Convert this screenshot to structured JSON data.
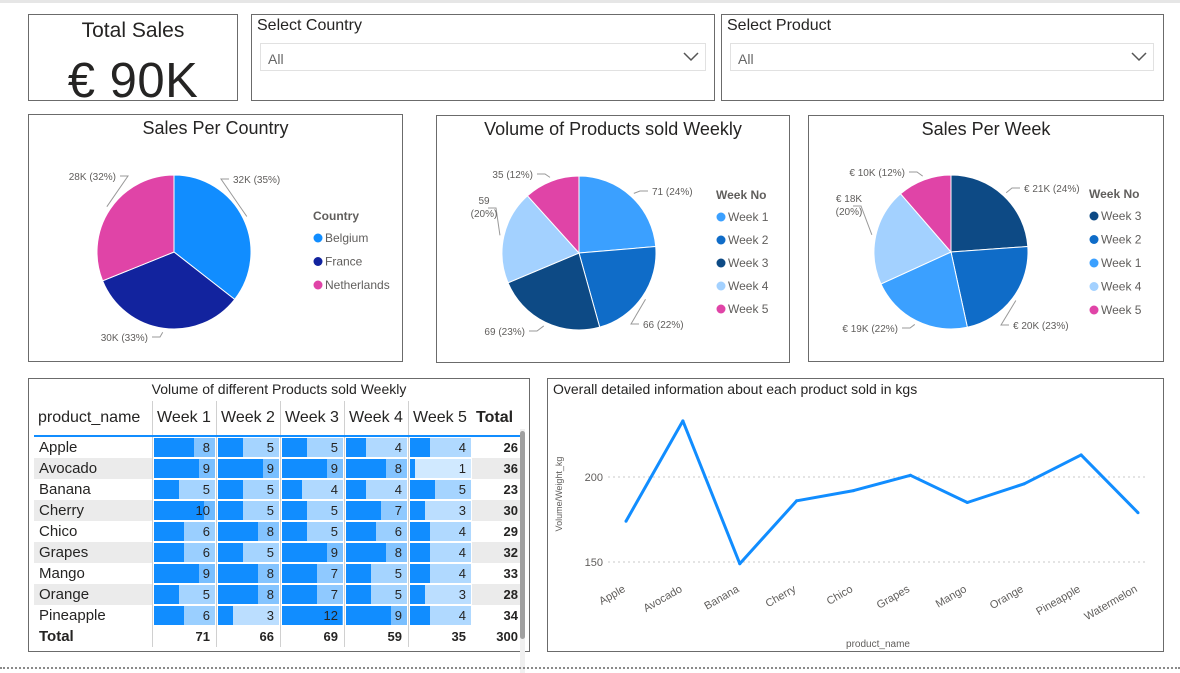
{
  "kpi": {
    "title": "Total Sales",
    "value": "€ 90K"
  },
  "country_slicer": {
    "title": "Select Country",
    "value": "All",
    "icon": "chevron-down-icon"
  },
  "product_slicer": {
    "title": "Select Product",
    "value": "All",
    "icon": "chevron-down-icon"
  },
  "colors": {
    "belgium": "#118dff",
    "france": "#12239e",
    "netherlands": "#e044a7",
    "week1": "#3ba0ff",
    "week2": "#0f6cc8",
    "week3": "#0d4a85",
    "week4": "#a3d1ff",
    "week5": "#e044a7",
    "line": "#118dff"
  },
  "chart_data": [
    {
      "type": "pie",
      "title": "Sales Per Country",
      "legend_title": "Country",
      "slices": [
        {
          "name": "Belgium",
          "value": 32,
          "label": "32K (35%)"
        },
        {
          "name": "France",
          "value": 30,
          "label": "30K (33%)"
        },
        {
          "name": "Netherlands",
          "value": 28,
          "label": "28K (32%)"
        }
      ]
    },
    {
      "type": "pie",
      "title": "Volume of Products sold Weekly",
      "legend_title": "Week No",
      "legend": [
        "Week 1",
        "Week 2",
        "Week 3",
        "Week 4",
        "Week 5"
      ],
      "slices": [
        {
          "name": "Week 1",
          "value": 71,
          "label": "71 (24%)"
        },
        {
          "name": "Week 2",
          "value": 66,
          "label": "66 (22%)"
        },
        {
          "name": "Week 3",
          "value": 69,
          "label": "69 (23%)"
        },
        {
          "name": "Week 4",
          "value": 59,
          "label_line1": "59",
          "label_line2": "(20%)"
        },
        {
          "name": "Week 5",
          "value": 35,
          "label": "35 (12%)"
        }
      ]
    },
    {
      "type": "pie",
      "title": "Sales Per Week",
      "legend_title": "Week No",
      "legend": [
        "Week 3",
        "Week 2",
        "Week 1",
        "Week 4",
        "Week 5"
      ],
      "slices": [
        {
          "name": "Week 3",
          "value": 21,
          "label": "€ 21K (24%)"
        },
        {
          "name": "Week 2",
          "value": 20,
          "label": "€ 20K (23%)"
        },
        {
          "name": "Week 1",
          "value": 19,
          "label": "€ 19K (22%)"
        },
        {
          "name": "Week 4",
          "value": 18,
          "label_line1": "€ 18K",
          "label_line2": "(20%)"
        },
        {
          "name": "Week 5",
          "value": 10,
          "label": "€ 10K (12%)"
        }
      ]
    },
    {
      "type": "table",
      "title": "Volume of different Products sold Weekly",
      "columns": [
        "product_name",
        "Week 1",
        "Week 2",
        "Week 3",
        "Week 4",
        "Week 5",
        "Total"
      ],
      "rows": [
        {
          "name": "Apple",
          "values": [
            8,
            5,
            5,
            4,
            4
          ],
          "total": 26
        },
        {
          "name": "Avocado",
          "values": [
            9,
            9,
            9,
            8,
            1
          ],
          "total": 36
        },
        {
          "name": "Banana",
          "values": [
            5,
            5,
            4,
            4,
            5
          ],
          "total": 23
        },
        {
          "name": "Cherry",
          "values": [
            10,
            5,
            5,
            7,
            3
          ],
          "total": 30
        },
        {
          "name": "Chico",
          "values": [
            6,
            8,
            5,
            6,
            4
          ],
          "total": 29
        },
        {
          "name": "Grapes",
          "values": [
            6,
            5,
            9,
            8,
            4
          ],
          "total": 32
        },
        {
          "name": "Mango",
          "values": [
            9,
            8,
            7,
            5,
            4
          ],
          "total": 33
        },
        {
          "name": "Orange",
          "values": [
            5,
            8,
            7,
            5,
            3
          ],
          "total": 28
        },
        {
          "name": "Pineapple",
          "values": [
            6,
            3,
            12,
            9,
            4
          ],
          "total": 34
        }
      ],
      "totals_label": "Total",
      "totals": [
        71,
        66,
        69,
        59,
        35
      ],
      "grand_total": 300
    },
    {
      "type": "line",
      "title": "Overall detailed information about each product sold in kgs",
      "xlabel": "product_name",
      "ylabel": "Volume/Weight_kg",
      "categories": [
        "Apple",
        "Avocado",
        "Banana",
        "Cherry",
        "Chico",
        "Grapes",
        "Mango",
        "Orange",
        "Pineapple",
        "Watermelon"
      ],
      "values": [
        174,
        233,
        149,
        186,
        192,
        201,
        185,
        196,
        213,
        179
      ],
      "yticks": [
        150,
        200
      ],
      "ylim": [
        140,
        240
      ]
    }
  ]
}
